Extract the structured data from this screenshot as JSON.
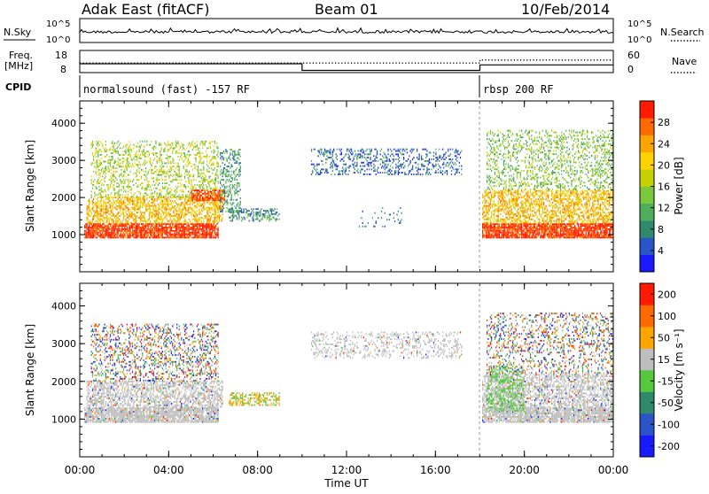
{
  "header": {
    "station": "Adak East (fitACF)",
    "beam": "Beam 01",
    "date": "10/Feb/2014"
  },
  "chart_data": [
    {
      "type": "line",
      "name": "noise",
      "ylabel_left": "N.Sky",
      "ylabel_right": "N.Search",
      "left_ticks": [
        "10^5",
        "10^0"
      ],
      "right_ticks": [
        "10^5",
        "10^0"
      ],
      "description_series": [
        "N.Sky",
        "N.Search"
      ]
    },
    {
      "type": "line",
      "name": "freq-nave",
      "ylabel_left_top": "Freq.",
      "ylabel_left_bottom": "[MHz]",
      "ylabel_right": "Nave",
      "left_ticks": [
        18,
        8
      ],
      "right_ticks": [
        60,
        0
      ],
      "freq_segments": [
        {
          "start": 0.0,
          "end": 10.0,
          "value": 12
        },
        {
          "start": 10.0,
          "end": 18.0,
          "value": 9
        },
        {
          "start": 18.0,
          "end": 24.0,
          "value": 11.5
        }
      ],
      "nave_segments": [
        {
          "start": 0.0,
          "end": 18.0,
          "value": 26
        },
        {
          "start": 18.0,
          "end": 24.0,
          "value": 34
        }
      ]
    },
    {
      "type": "table",
      "name": "cpid",
      "label": "CPID",
      "programs": [
        {
          "start": 0.0,
          "end": 18.0,
          "text": "normalsound (fast) -157 RF"
        },
        {
          "start": 18.0,
          "end": 24.0,
          "text": "rbsp 200 RF"
        }
      ]
    },
    {
      "type": "heatmap",
      "name": "power",
      "ylabel": "Slant Range [km]",
      "y_ticks": [
        1000,
        2000,
        3000,
        4000
      ],
      "ylim": [
        0,
        4600
      ],
      "colorbar_label": "Power [dB]",
      "colorbar_ticks": [
        28,
        24,
        20,
        16,
        12,
        8,
        4
      ],
      "colorbar_range": [
        0,
        32
      ],
      "colorbar_colors": [
        "#1a1aff",
        "#2a55c8",
        "#2e8a6a",
        "#4fae5a",
        "#7cc83c",
        "#c6d200",
        "#ffd200",
        "#ffa500",
        "#ff6a00",
        "#ff1a00"
      ],
      "echo_regions": [
        {
          "t0": 0.2,
          "t1": 6.2,
          "r0": 900,
          "r1": 1300,
          "power": 30,
          "density": 0.85
        },
        {
          "t0": 0.3,
          "t1": 6.4,
          "r0": 1300,
          "r1": 2000,
          "power": 22,
          "density": 0.55
        },
        {
          "t0": 0.5,
          "t1": 6.2,
          "r0": 2000,
          "r1": 3500,
          "power": 16,
          "density": 0.3
        },
        {
          "t0": 5.0,
          "t1": 6.5,
          "r0": 1900,
          "r1": 2200,
          "power": 29,
          "density": 0.7
        },
        {
          "t0": 6.3,
          "t1": 7.2,
          "r0": 1600,
          "r1": 3300,
          "power": 10,
          "density": 0.35
        },
        {
          "t0": 6.7,
          "t1": 9.0,
          "r0": 1350,
          "r1": 1700,
          "power": 9,
          "density": 0.45
        },
        {
          "t0": 10.4,
          "t1": 17.2,
          "r0": 2600,
          "r1": 3300,
          "power": 6,
          "density": 0.28
        },
        {
          "t0": 12.5,
          "t1": 14.5,
          "r0": 1200,
          "r1": 1700,
          "power": 7,
          "density": 0.08
        },
        {
          "t0": 18.1,
          "t1": 24.0,
          "r0": 900,
          "r1": 1300,
          "power": 30,
          "density": 0.85
        },
        {
          "t0": 18.1,
          "t1": 24.0,
          "r0": 1300,
          "r1": 2200,
          "power": 22,
          "density": 0.55
        },
        {
          "t0": 18.3,
          "t1": 24.0,
          "r0": 2200,
          "r1": 3800,
          "power": 14,
          "density": 0.28
        }
      ]
    },
    {
      "type": "heatmap",
      "name": "velocity",
      "ylabel": "Slant Range [km]",
      "y_ticks": [
        1000,
        2000,
        3000,
        4000
      ],
      "ylim": [
        0,
        4600
      ],
      "xlabel": "Time UT",
      "x_ticks": [
        "00:00",
        "04:00",
        "08:00",
        "12:00",
        "16:00",
        "20:00",
        "00:00"
      ],
      "xlim": [
        0,
        24
      ],
      "colorbar_label": "Velocity [m s⁻¹]",
      "colorbar_ticks": [
        200,
        100,
        50,
        15,
        -15,
        -50,
        -100,
        -200
      ],
      "colorbar_colors": [
        "#1a1aff",
        "#2a55c8",
        "#2e8a6a",
        "#55c83c",
        "#bebebe",
        "#ffa500",
        "#ff6a00",
        "#ff1a00"
      ],
      "echo_regions": [
        {
          "t0": 0.2,
          "t1": 6.2,
          "r0": 900,
          "r1": 1300,
          "vel": "ground",
          "density": 0.85
        },
        {
          "t0": 0.3,
          "t1": 6.4,
          "r0": 1300,
          "r1": 2000,
          "vel": "ground",
          "density": 0.55
        },
        {
          "t0": 0.5,
          "t1": 6.2,
          "r0": 2000,
          "r1": 3500,
          "vel": "mixed",
          "density": 0.3
        },
        {
          "t0": 6.7,
          "t1": 9.0,
          "r0": 1350,
          "r1": 1700,
          "vel": "orange",
          "density": 0.45
        },
        {
          "t0": 10.4,
          "t1": 17.2,
          "r0": 2600,
          "r1": 3300,
          "vel": "ground",
          "density": 0.25
        },
        {
          "t0": 18.1,
          "t1": 24.0,
          "r0": 900,
          "r1": 1300,
          "vel": "ground",
          "density": 0.85
        },
        {
          "t0": 18.1,
          "t1": 24.0,
          "r0": 1300,
          "r1": 2200,
          "vel": "ground",
          "density": 0.55
        },
        {
          "t0": 18.3,
          "t1": 20.0,
          "r0": 1200,
          "r1": 2400,
          "vel": "green",
          "density": 0.45
        },
        {
          "t0": 18.3,
          "t1": 24.0,
          "r0": 2200,
          "r1": 3800,
          "vel": "mixed",
          "density": 0.25
        }
      ]
    }
  ]
}
